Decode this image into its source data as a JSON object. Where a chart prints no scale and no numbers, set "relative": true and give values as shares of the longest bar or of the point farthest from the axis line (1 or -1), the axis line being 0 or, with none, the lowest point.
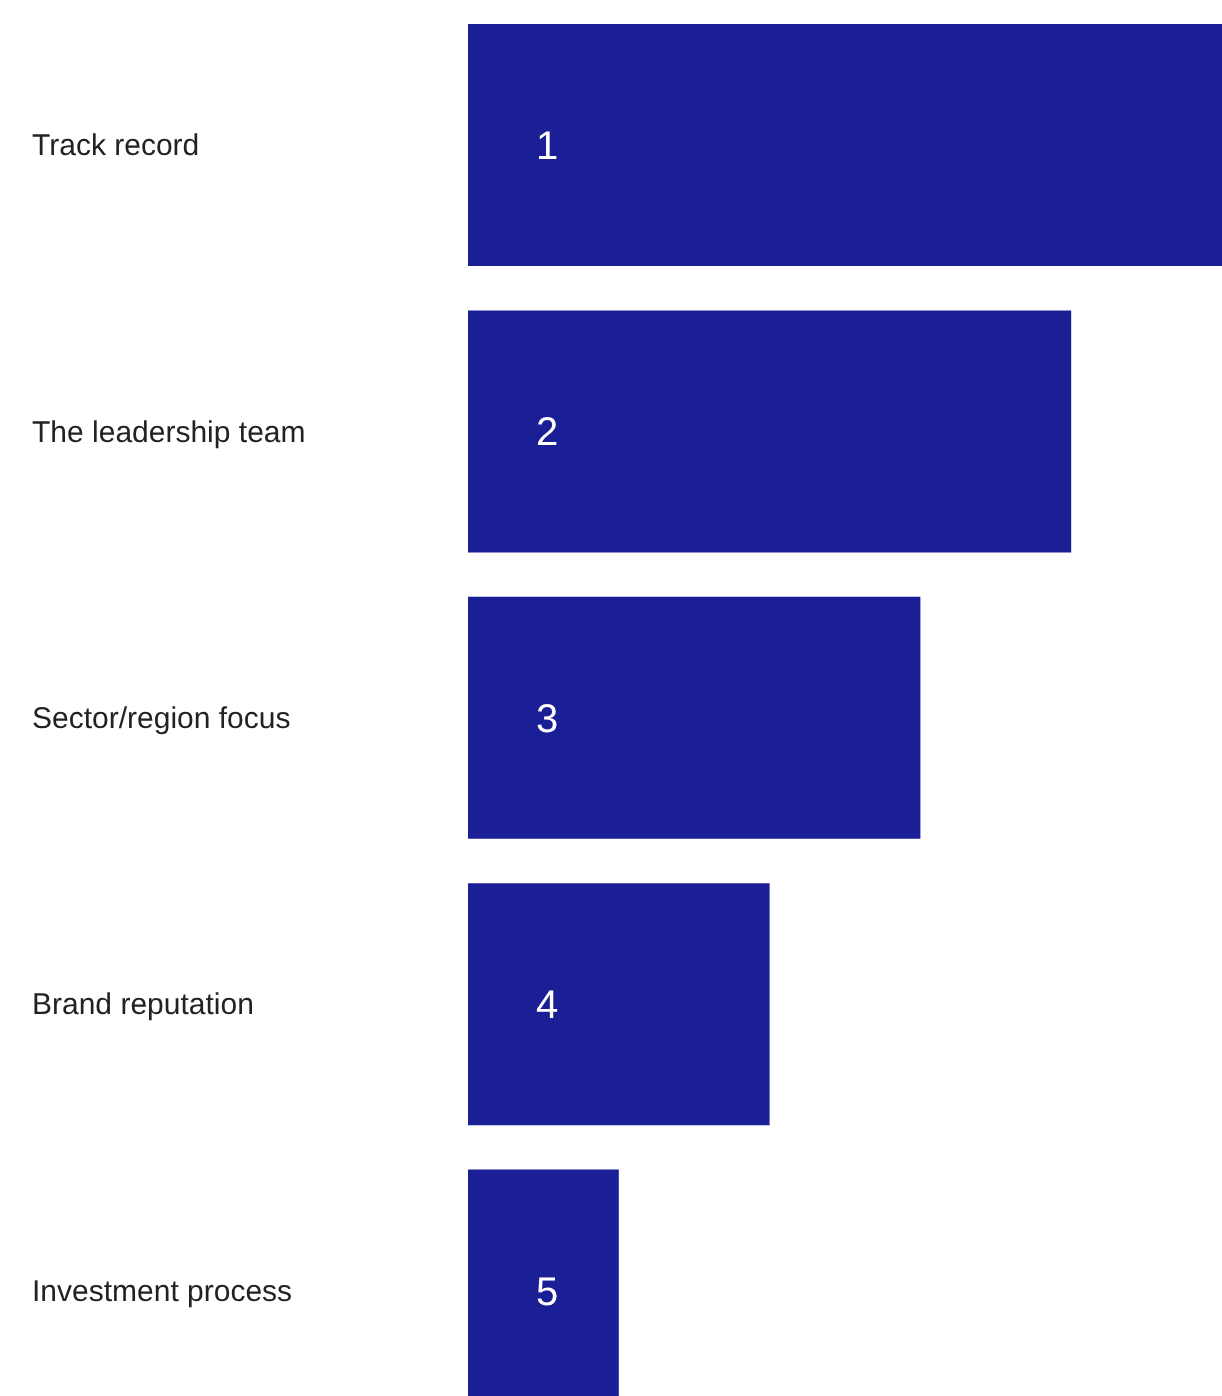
{
  "chart_data": {
    "type": "bar",
    "orientation": "horizontal",
    "relative": true,
    "categories": [
      "Track record",
      "The leadership team",
      "Sector/region focus",
      "Brand reputation",
      "Investment process"
    ],
    "values": [
      1,
      0.8,
      0.6,
      0.4,
      0.2
    ],
    "color": "#1a1f96",
    "annotations": [
      {
        "text": "1",
        "y": "Track record"
      },
      {
        "text": "2",
        "y": "The leadership team"
      },
      {
        "text": "3",
        "y": "Sector/region focus"
      },
      {
        "text": "4",
        "y": "Brand reputation"
      },
      {
        "text": "5",
        "y": "Investment process"
      }
    ]
  }
}
